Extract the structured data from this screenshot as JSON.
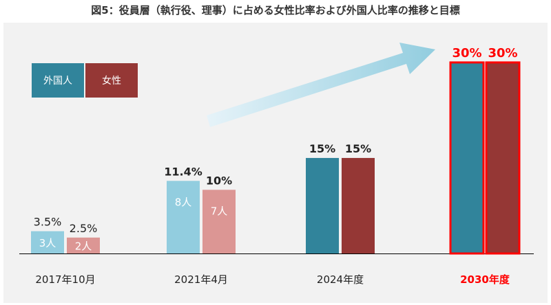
{
  "title": "図5：役員層（執行役、理事）に占める女性比率および外国人比率の推移と目標",
  "colors": {
    "foreign_past": "#92cddf",
    "female_past": "#dc9694",
    "foreign": "#31849b",
    "female": "#953735",
    "target": "#ff0000",
    "arrow_start": "#e6f3f9",
    "arrow_end": "#92cddf"
  },
  "legend": [
    {
      "label": "外国人",
      "color": "#31849b"
    },
    {
      "label": "女性",
      "color": "#953735"
    }
  ],
  "chart_data": {
    "type": "bar",
    "title": "図5：役員層（執行役、理事）に占める女性比率および外国人比率の推移と目標",
    "xlabel": "",
    "ylabel": "",
    "ylim": [
      0,
      30
    ],
    "grid": false,
    "legend_position": "top-left",
    "categories": [
      "2017年10月",
      "2021年4月",
      "2024年度",
      "2030年度"
    ],
    "series": [
      {
        "name": "外国人",
        "values": [
          3.5,
          11.4,
          15,
          30
        ],
        "labels": [
          "3.5%",
          "11.4%",
          "15%",
          "30%"
        ],
        "inner_labels": [
          "3人",
          "8人",
          "",
          ""
        ]
      },
      {
        "name": "女性",
        "values": [
          2.5,
          10,
          15,
          30
        ],
        "labels": [
          "2.5%",
          "10%",
          "15%",
          "30%"
        ],
        "inner_labels": [
          "2人",
          "7人",
          "",
          ""
        ]
      }
    ],
    "highlight_category": "2030年度"
  }
}
